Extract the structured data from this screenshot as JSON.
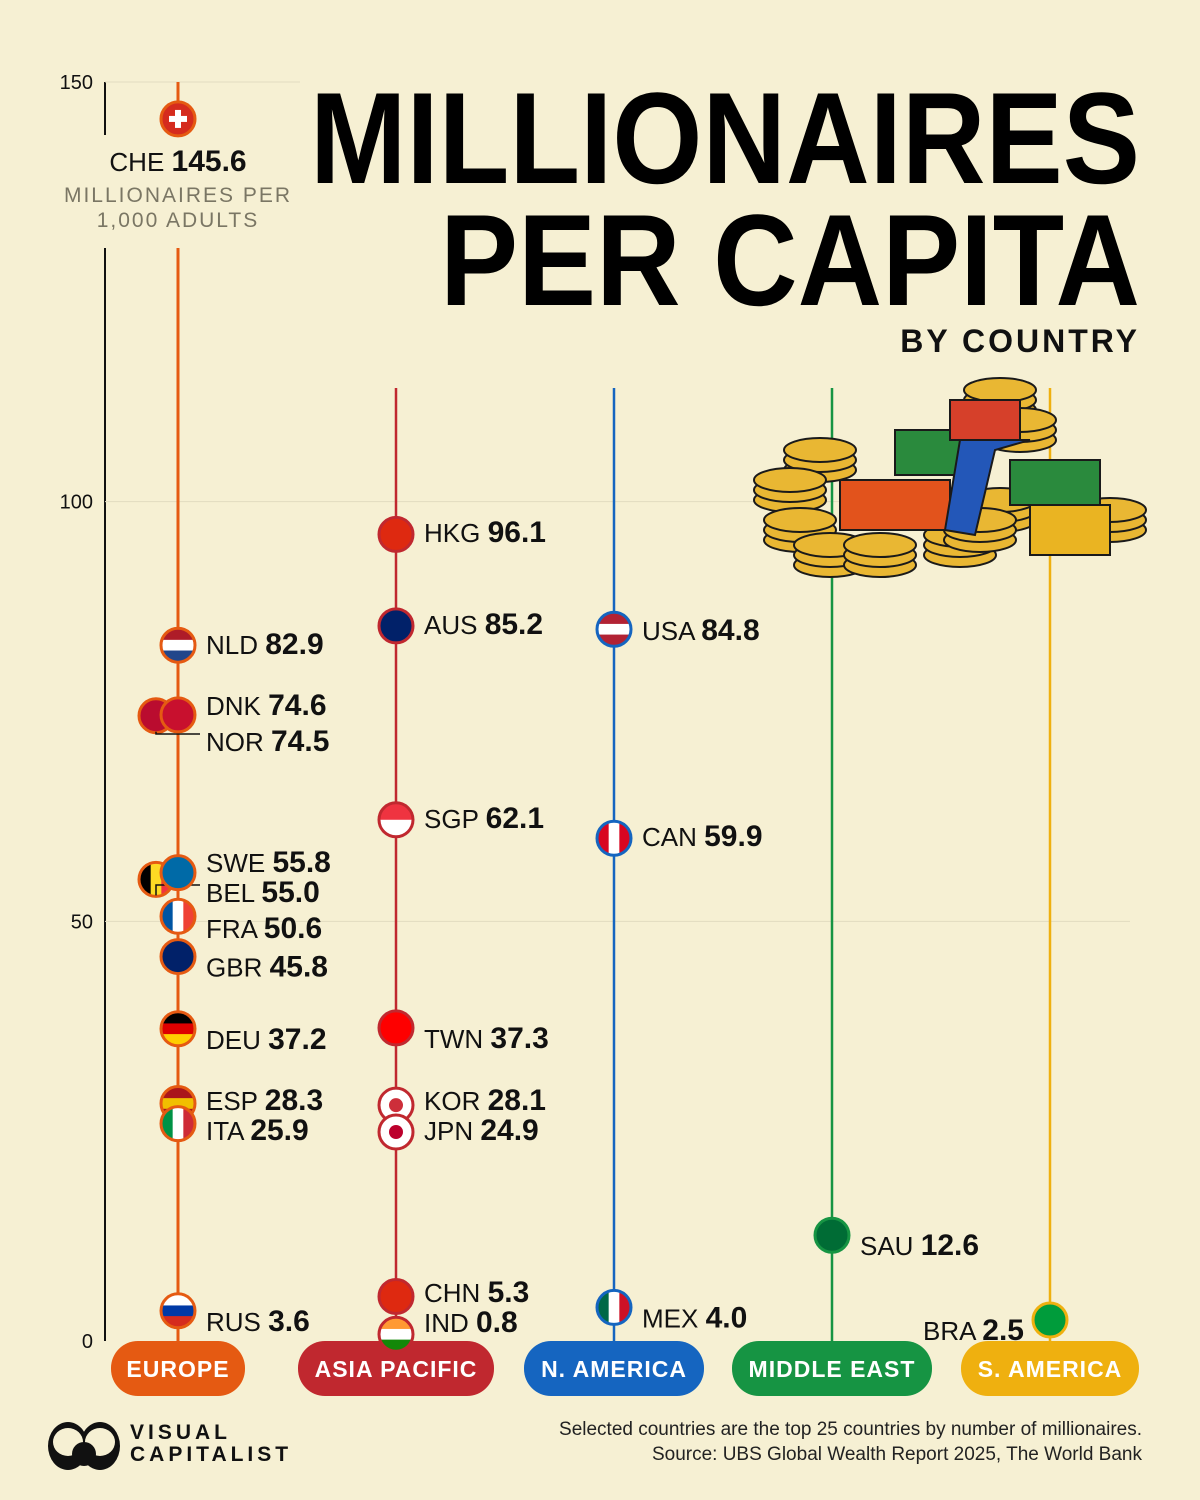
{
  "title": {
    "line1": "MILLIONAIRES",
    "line2": "PER CAPITA",
    "subtitle": "BY COUNTRY"
  },
  "chart_data": {
    "type": "scatter",
    "title": "MILLIONAIRES PER CAPITA",
    "subtitle": "BY COUNTRY",
    "ylabel": "MILLIONAIRES PER 1,000 ADULTS",
    "ylabel_lines": [
      "MILLIONAIRES PER",
      "1,000 ADULTS"
    ],
    "ylim": [
      0,
      150
    ],
    "yticks": [
      0,
      50,
      100,
      150
    ],
    "grid": true,
    "categories": [
      {
        "name": "EUROPE",
        "color": "#e55a12"
      },
      {
        "name": "ASIA PACIFIC",
        "color": "#c0282f"
      },
      {
        "name": "N. AMERICA",
        "color": "#1565c0"
      },
      {
        "name": "MIDDLE EAST",
        "color": "#169443"
      },
      {
        "name": "S. AMERICA",
        "color": "#efb00f"
      }
    ],
    "points": [
      {
        "region": "EUROPE",
        "country": "CHE",
        "value": 145.6,
        "flag": [
          "#d52b1e"
        ]
      },
      {
        "region": "EUROPE",
        "country": "NLD",
        "value": 82.9,
        "flag": [
          "#ae1c28",
          "#ffffff",
          "#21468b"
        ]
      },
      {
        "region": "EUROPE",
        "country": "DNK",
        "value": 74.6,
        "flag": [
          "#c8102e"
        ]
      },
      {
        "region": "EUROPE",
        "country": "NOR",
        "value": 74.5,
        "flag": [
          "#ba0c2f"
        ]
      },
      {
        "region": "EUROPE",
        "country": "SWE",
        "value": 55.8,
        "flag": [
          "#006aa7"
        ]
      },
      {
        "region": "EUROPE",
        "country": "BEL",
        "value": 55.0,
        "flag": [
          "#000000",
          "#fdda24",
          "#ef3340"
        ],
        "vertical": true
      },
      {
        "region": "EUROPE",
        "country": "FRA",
        "value": 50.6,
        "flag": [
          "#0055a4",
          "#ffffff",
          "#ef4135"
        ],
        "vertical": true
      },
      {
        "region": "EUROPE",
        "country": "GBR",
        "value": 45.8,
        "flag": [
          "#012169"
        ]
      },
      {
        "region": "EUROPE",
        "country": "DEU",
        "value": 37.2,
        "flag": [
          "#000000",
          "#dd0000",
          "#ffce00"
        ]
      },
      {
        "region": "EUROPE",
        "country": "ESP",
        "value": 28.3,
        "flag": [
          "#aa151b",
          "#f1bf00",
          "#aa151b"
        ]
      },
      {
        "region": "EUROPE",
        "country": "ITA",
        "value": 25.9,
        "flag": [
          "#009246",
          "#ffffff",
          "#ce2b37"
        ],
        "vertical": true
      },
      {
        "region": "EUROPE",
        "country": "RUS",
        "value": 3.6,
        "flag": [
          "#ffffff",
          "#0039a6",
          "#d52b1e"
        ]
      },
      {
        "region": "ASIA PACIFIC",
        "country": "HKG",
        "value": 96.1,
        "flag": [
          "#de2910"
        ]
      },
      {
        "region": "ASIA PACIFIC",
        "country": "AUS",
        "value": 85.2,
        "flag": [
          "#012169"
        ]
      },
      {
        "region": "ASIA PACIFIC",
        "country": "SGP",
        "value": 62.1,
        "flag": [
          "#ef3340",
          "#ffffff"
        ]
      },
      {
        "region": "ASIA PACIFIC",
        "country": "TWN",
        "value": 37.3,
        "flag": [
          "#fe0000"
        ]
      },
      {
        "region": "ASIA PACIFIC",
        "country": "KOR",
        "value": 28.1,
        "flag": [
          "#ffffff"
        ]
      },
      {
        "region": "ASIA PACIFIC",
        "country": "JPN",
        "value": 24.9,
        "flag": [
          "#ffffff"
        ]
      },
      {
        "region": "ASIA PACIFIC",
        "country": "CHN",
        "value": 5.3,
        "flag": [
          "#de2910"
        ]
      },
      {
        "region": "ASIA PACIFIC",
        "country": "IND",
        "value": 0.8,
        "flag": [
          "#ff9933",
          "#ffffff",
          "#138808"
        ]
      },
      {
        "region": "N. AMERICA",
        "country": "USA",
        "value": 84.8,
        "flag": [
          "#b22234",
          "#ffffff",
          "#b22234"
        ]
      },
      {
        "region": "N. AMERICA",
        "country": "CAN",
        "value": 59.9,
        "flag": [
          "#d80621",
          "#ffffff",
          "#d80621"
        ],
        "vertical": true
      },
      {
        "region": "N. AMERICA",
        "country": "MEX",
        "value": 4.0,
        "flag": [
          "#006847",
          "#ffffff",
          "#ce1126"
        ],
        "vertical": true
      },
      {
        "region": "MIDDLE EAST",
        "country": "SAU",
        "value": 12.6,
        "flag": [
          "#006c35"
        ]
      },
      {
        "region": "S. AMERICA",
        "country": "BRA",
        "value": 2.5,
        "flag": [
          "#009c3b"
        ]
      }
    ]
  },
  "footer": {
    "note": "Selected countries are the top 25 countries by number of millionaires.",
    "source": "Source: UBS Global Wealth Report 2025, The World Bank",
    "logo": [
      "VISUAL",
      "CAPITALIST"
    ]
  }
}
